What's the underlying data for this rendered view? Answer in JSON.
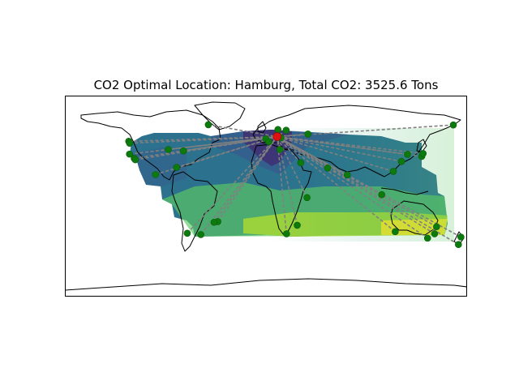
{
  "figure": {
    "title": "CO2 Optimal Location: Hamburg, Total CO2: 3525.6 Tons"
  },
  "map": {
    "projection": "equirectangular",
    "extent_deg": {
      "lon": [
        -180,
        180
      ],
      "lat": [
        -90,
        90
      ]
    },
    "colormap": "viridis",
    "colormap_stops": [
      "#440154",
      "#3b528b",
      "#21918c",
      "#5ec962",
      "#fde725"
    ],
    "heatmap_coverage_deg": {
      "lon": [
        -130,
        160
      ],
      "lat": [
        -50,
        60
      ]
    },
    "route_color": "#808080",
    "site_color": "#0c7a0c",
    "optimum_color": "#e01010"
  },
  "optimal_location": {
    "name": "Hamburg",
    "lon": 10.0,
    "lat": 53.5
  },
  "sites": [
    {
      "lon": -123.1,
      "lat": 49.3
    },
    {
      "lon": -122.4,
      "lat": 37.8
    },
    {
      "lon": -118.2,
      "lat": 34.0
    },
    {
      "lon": -117.2,
      "lat": 32.7
    },
    {
      "lon": -122.3,
      "lat": 47.6
    },
    {
      "lon": -87.6,
      "lat": 41.9
    },
    {
      "lon": -74.0,
      "lat": 40.7
    },
    {
      "lon": -80.2,
      "lat": 25.8
    },
    {
      "lon": -99.1,
      "lat": 19.4
    },
    {
      "lon": -43.2,
      "lat": -22.9
    },
    {
      "lon": -46.6,
      "lat": -23.5
    },
    {
      "lon": -58.4,
      "lat": -34.6
    },
    {
      "lon": -70.6,
      "lat": -33.4
    },
    {
      "lon": -51.7,
      "lat": 64.2
    },
    {
      "lon": -0.1,
      "lat": 51.5
    },
    {
      "lon": 2.4,
      "lat": 48.9
    },
    {
      "lon": 13.4,
      "lat": 52.5
    },
    {
      "lon": 18.1,
      "lat": 59.3
    },
    {
      "lon": 10.7,
      "lat": 59.9
    },
    {
      "lon": 12.5,
      "lat": 41.9
    },
    {
      "lon": 37.6,
      "lat": 55.8
    },
    {
      "lon": 31.2,
      "lat": 30.0
    },
    {
      "lon": 55.3,
      "lat": 25.3
    },
    {
      "lon": 72.9,
      "lat": 19.1
    },
    {
      "lon": 18.4,
      "lat": -33.9
    },
    {
      "lon": 28.0,
      "lat": -26.2
    },
    {
      "lon": 36.8,
      "lat": -1.3
    },
    {
      "lon": 103.8,
      "lat": 1.3
    },
    {
      "lon": 114.2,
      "lat": 22.3
    },
    {
      "lon": 121.5,
      "lat": 31.2
    },
    {
      "lon": 139.7,
      "lat": 35.7
    },
    {
      "lon": 140.9,
      "lat": 38.3
    },
    {
      "lon": 126.9,
      "lat": 37.6
    },
    {
      "lon": 115.9,
      "lat": -31.9
    },
    {
      "lon": 151.2,
      "lat": -33.9
    },
    {
      "lon": 144.9,
      "lat": -37.8
    },
    {
      "lon": 153.0,
      "lat": -27.5
    },
    {
      "lon": 174.8,
      "lat": -36.8
    },
    {
      "lon": 172.6,
      "lat": -43.5
    },
    {
      "lon": 168.0,
      "lat": 64.0
    }
  ]
}
